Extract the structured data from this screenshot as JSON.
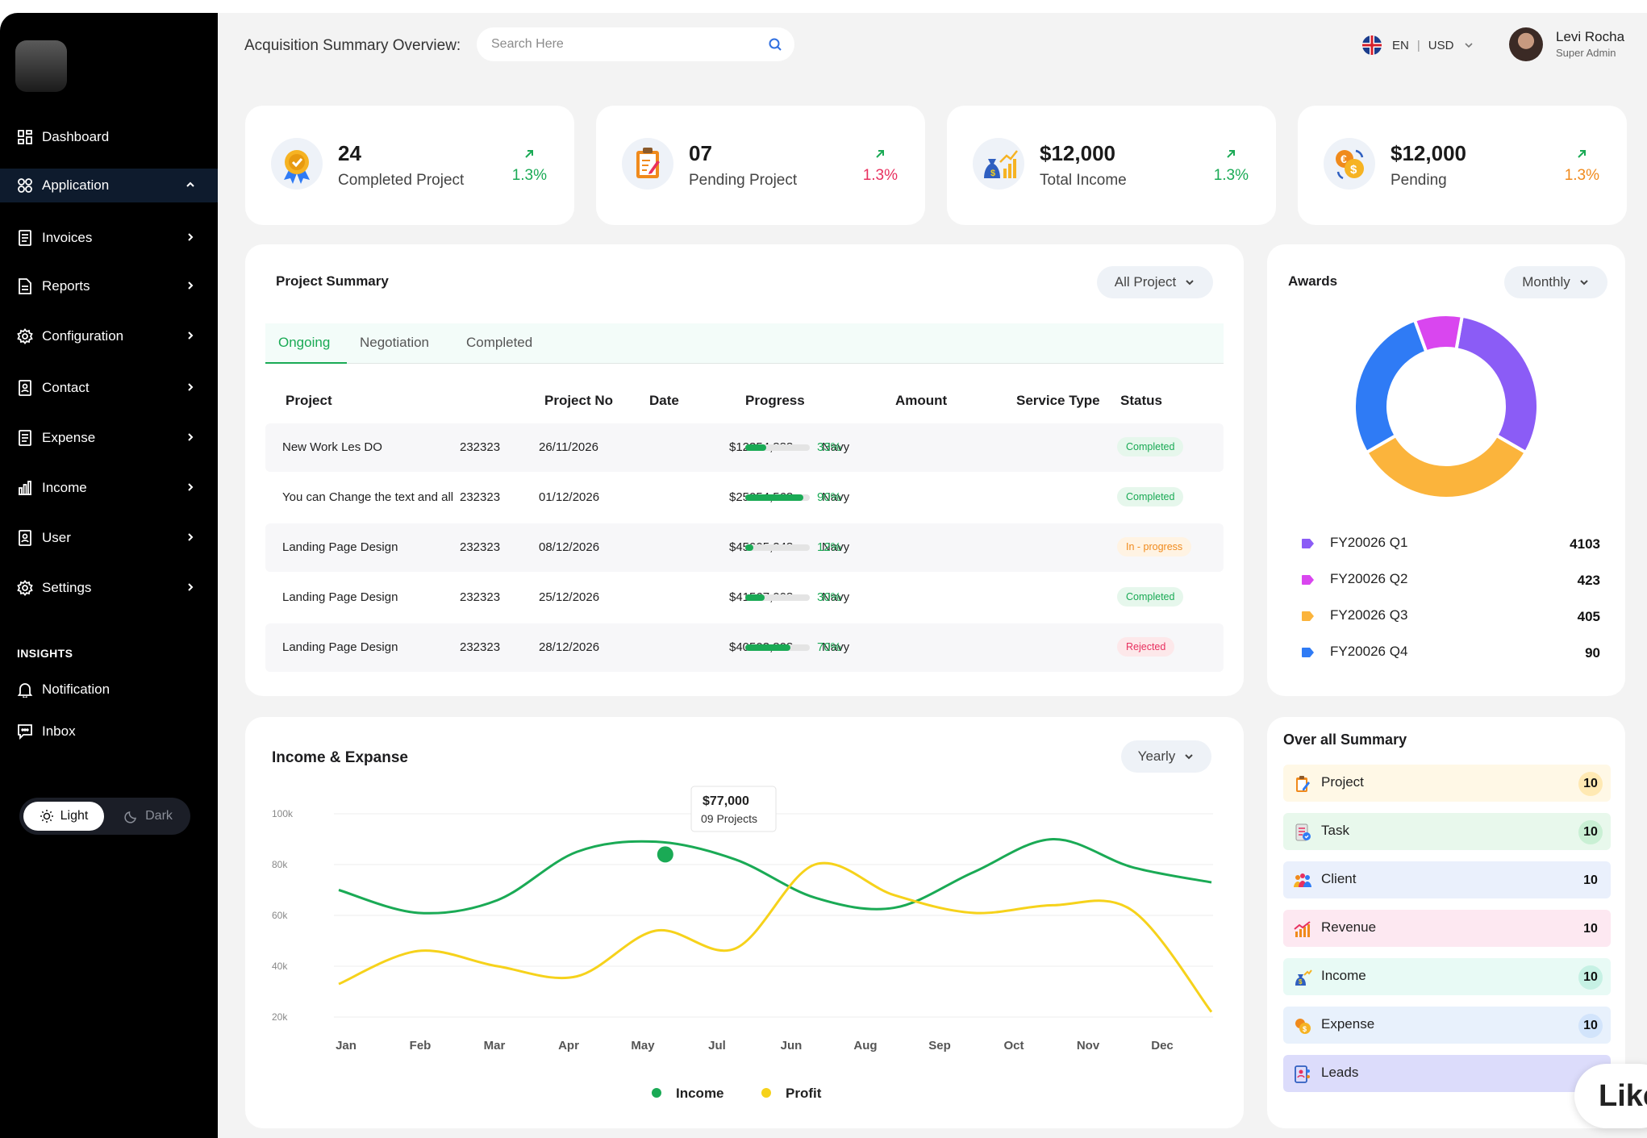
{
  "header": {
    "title": "Acquisition Summary Overview:",
    "search_placeholder": "Search Here",
    "language": "EN",
    "separator": "|",
    "currency": "USD",
    "user_name": "Levi Rocha",
    "user_role": "Super Admin"
  },
  "sidebar": {
    "items": [
      {
        "label": "Dashboard",
        "icon": "dashboard-icon"
      },
      {
        "label": "Application",
        "icon": "apps-icon",
        "active": true
      },
      {
        "label": "Invoices",
        "icon": "document-icon"
      },
      {
        "label": "Reports",
        "icon": "report-icon"
      },
      {
        "label": "Configuration",
        "icon": "gear-icon"
      },
      {
        "label": "Contact",
        "icon": "contact-icon"
      },
      {
        "label": "Expense",
        "icon": "document-icon"
      },
      {
        "label": "Income",
        "icon": "bar-chart-icon"
      },
      {
        "label": "User",
        "icon": "user-icon"
      },
      {
        "label": "Settings",
        "icon": "gear-icon"
      }
    ],
    "insights_label": "INSIGHTS",
    "insights": [
      {
        "label": "Notification",
        "icon": "bell-icon"
      },
      {
        "label": "Inbox",
        "icon": "chat-icon"
      }
    ],
    "theme": {
      "light": "Light",
      "dark": "Dark"
    }
  },
  "stats": [
    {
      "value": "24",
      "label": "Completed Project",
      "change": "1.3%",
      "color": "#1aaa55",
      "icon": "award-icon"
    },
    {
      "value": "07",
      "label": "Pending Project",
      "change": "1.3%",
      "color": "#e8305f",
      "icon": "clipboard-icon"
    },
    {
      "value": "$12,000",
      "label": "Total Income",
      "change": "1.3%",
      "color": "#1aaa55",
      "icon": "money-bag-icon"
    },
    {
      "value": "$12,000",
      "label": "Pending",
      "change": "1.3%",
      "color": "#f08a1c",
      "icon": "coins-icon"
    }
  ],
  "project_summary": {
    "title": "Project Summary",
    "filter": "All Project",
    "tabs": [
      "Ongoing",
      "Negotiation",
      "Completed"
    ],
    "columns": [
      "Project",
      "Project No",
      "Date",
      "Progress",
      "Amount",
      "Service Type",
      "Status"
    ],
    "rows": [
      {
        "project": "New Work Les DO",
        "no": "232323",
        "date": "26/11/2026",
        "progress": 33,
        "progress_label": "33%",
        "amount": "$12354,888",
        "service": "Navy",
        "status": "Completed"
      },
      {
        "project": "You can Change the text and all",
        "no": "232323",
        "date": "01/12/2026",
        "progress": 90,
        "progress_label": "90%",
        "amount": "$25054,568",
        "service": "Navy",
        "status": "Completed"
      },
      {
        "project": "Landing Page Design",
        "no": "232323",
        "date": "08/12/2026",
        "progress": 12,
        "progress_label": "12%",
        "amount": "$45005,248",
        "service": "Navy",
        "status": "In - progress"
      },
      {
        "project": "Landing Page Design",
        "no": "232323",
        "date": "25/12/2026",
        "progress": 30,
        "progress_label": "30%",
        "amount": "$41567,008",
        "service": "Navy",
        "status": "Completed"
      },
      {
        "project": "Landing Page Design",
        "no": "232323",
        "date": "28/12/2026",
        "progress": 70,
        "progress_label": "70%",
        "amount": "$40503,808",
        "service": "Navy",
        "status": "Rejected"
      }
    ]
  },
  "awards": {
    "title": "Awards",
    "filter": "Monthly",
    "items": [
      {
        "label": "FY20026 Q1",
        "value": "4103",
        "color": "#8b5cf6"
      },
      {
        "label": "FY20026 Q2",
        "value": "423",
        "color": "#d946ef"
      },
      {
        "label": "FY20026 Q3",
        "value": "405",
        "color": "#fbb43c"
      },
      {
        "label": "FY20026 Q4",
        "value": "90",
        "color": "#2f7bf5"
      }
    ]
  },
  "chart_data": {
    "type": "line",
    "title": "Income & Expanse",
    "filter": "Yearly",
    "categories": [
      "Jan",
      "Feb",
      "Mar",
      "Apr",
      "May",
      "Jul",
      "Jun",
      "Aug",
      "Sep",
      "Oct",
      "Nov",
      "Dec"
    ],
    "y_ticks": [
      "100k",
      "80k",
      "60k",
      "40k",
      "20k"
    ],
    "ylim": [
      20000,
      100000
    ],
    "series": [
      {
        "name": "Income",
        "color": "#1aaa55",
        "values": [
          70000,
          61000,
          66000,
          85000,
          89000,
          82000,
          67000,
          63000,
          77000,
          90000,
          79000,
          73000
        ]
      },
      {
        "name": "Profit",
        "color": "#f6d21b",
        "values": [
          33000,
          46000,
          40000,
          36000,
          54000,
          47000,
          80000,
          68000,
          61000,
          64000,
          62000,
          22000
        ]
      }
    ],
    "tooltip": {
      "value": "$77,000",
      "sub": "09 Projects"
    },
    "legend": "bottom"
  },
  "overall_summary": {
    "title": "Over all Summary",
    "items": [
      {
        "label": "Project",
        "count": "10",
        "bg": "#fff8e6",
        "badge": "#ffe9b3",
        "icon": "clipboard-icon"
      },
      {
        "label": "Task",
        "count": "10",
        "bg": "#e8f8ec",
        "badge": "#c9f0d4",
        "icon": "task-icon"
      },
      {
        "label": "Client",
        "count": "10",
        "bg": "#eaf0fc",
        "badge": "#eaf0fc",
        "icon": "people-icon"
      },
      {
        "label": "Revenue",
        "count": "10",
        "bg": "#fde8f1",
        "badge": "#fde8f1",
        "icon": "growth-icon"
      },
      {
        "label": "Income",
        "count": "10",
        "bg": "#e8faf5",
        "badge": "#c6f1e4",
        "icon": "money-bag-icon"
      },
      {
        "label": "Expense",
        "count": "10",
        "bg": "#e8f1fc",
        "badge": "#d2e4fb",
        "icon": "coins-icon"
      },
      {
        "label": "Leads",
        "count": "",
        "bg": "#dcdcfb",
        "badge": "#dcdcfb",
        "icon": "leads-icon"
      }
    ]
  },
  "like_button": "Like"
}
